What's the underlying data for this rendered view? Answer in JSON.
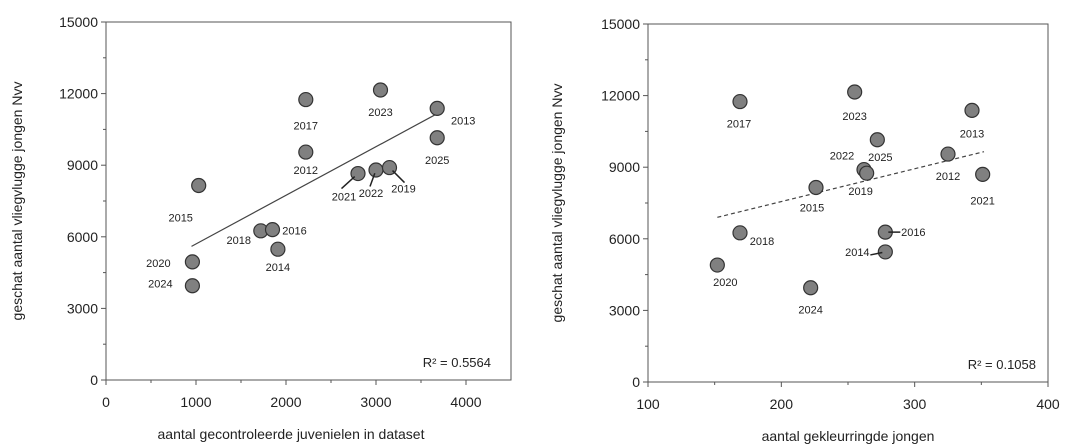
{
  "chart_data": [
    {
      "type": "scatter",
      "xlabel": "aantal gecontroleerde juvenielen in dataset",
      "ylabel": "geschat aantal vliegvlugge jongen Nvv",
      "xlim": [
        0,
        4500
      ],
      "ylim": [
        0,
        15000
      ],
      "xticks": [
        "0",
        "1000",
        "2000",
        "3000",
        "4000"
      ],
      "yticks": [
        "0",
        "3000",
        "6000",
        "9000",
        "12000",
        "15000"
      ],
      "r2_label": "R² = 0.5564",
      "trendline": {
        "style": "solid",
        "x": [
          950,
          3700
        ],
        "y": [
          5600,
          11200
        ]
      },
      "points": [
        {
          "label": "2015",
          "x": 1030,
          "y": 8150
        },
        {
          "label": "2020",
          "x": 960,
          "y": 4950
        },
        {
          "label": "2024",
          "x": 960,
          "y": 3950
        },
        {
          "label": "2018",
          "x": 1720,
          "y": 6250
        },
        {
          "label": "2016",
          "x": 1850,
          "y": 6300
        },
        {
          "label": "2014",
          "x": 1910,
          "y": 5480
        },
        {
          "label": "2017",
          "x": 2220,
          "y": 11750
        },
        {
          "label": "2012",
          "x": 2220,
          "y": 9550
        },
        {
          "label": "2021",
          "x": 2800,
          "y": 8650
        },
        {
          "label": "2022",
          "x": 3000,
          "y": 8800
        },
        {
          "label": "2019",
          "x": 3150,
          "y": 8900
        },
        {
          "label": "2023",
          "x": 3050,
          "y": 12150
        },
        {
          "label": "2013",
          "x": 3680,
          "y": 11380
        },
        {
          "label": "2025",
          "x": 3680,
          "y": 10150
        }
      ]
    },
    {
      "type": "scatter",
      "xlabel": "aantal gekleurringde jongen",
      "ylabel": "geschat aantal vliegvlugge jongen Nvv",
      "xlim": [
        100,
        400
      ],
      "ylim": [
        0,
        15000
      ],
      "xticks": [
        "100",
        "200",
        "300",
        "400"
      ],
      "yticks": [
        "0",
        "3000",
        "6000",
        "9000",
        "12000",
        "15000"
      ],
      "r2_label": "R² = 0.1058",
      "trendline": {
        "style": "dashed",
        "x": [
          152,
          352
        ],
        "y": [
          6900,
          9650
        ]
      },
      "points": [
        {
          "label": "2017",
          "x": 169,
          "y": 11750
        },
        {
          "label": "2018",
          "x": 169,
          "y": 6250
        },
        {
          "label": "2020",
          "x": 152,
          "y": 4900
        },
        {
          "label": "2024",
          "x": 222,
          "y": 3950
        },
        {
          "label": "2015",
          "x": 226,
          "y": 8150
        },
        {
          "label": "2023",
          "x": 255,
          "y": 12150
        },
        {
          "label": "2022",
          "x": 262,
          "y": 8900
        },
        {
          "label": "2019",
          "x": 264,
          "y": 8750
        },
        {
          "label": "2025",
          "x": 272,
          "y": 10150
        },
        {
          "label": "2016",
          "x": 278,
          "y": 6280
        },
        {
          "label": "2014",
          "x": 278,
          "y": 5450
        },
        {
          "label": "2012",
          "x": 325,
          "y": 9550
        },
        {
          "label": "2013",
          "x": 343,
          "y": 11380
        },
        {
          "label": "2021",
          "x": 351,
          "y": 8700
        }
      ]
    }
  ]
}
